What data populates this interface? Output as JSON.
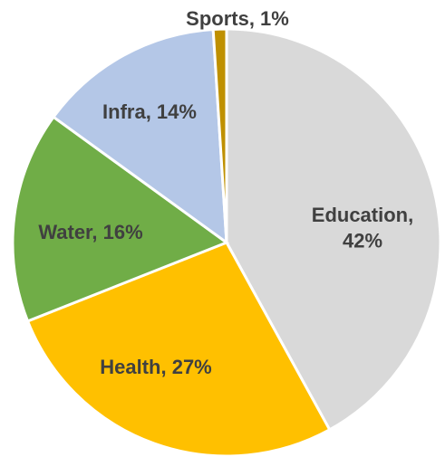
{
  "chart_data": {
    "type": "pie",
    "values": [
      42,
      27,
      16,
      14,
      1
    ],
    "value_labels": [
      "Education, 42%",
      "Health, 27%",
      "Water, 16%",
      "Infra, 14%",
      "Sports, 1%"
    ],
    "colors": [
      "#d9d9d9",
      "#ffc000",
      "#70ad47",
      "#b4c7e7",
      "#bf9000"
    ]
  }
}
